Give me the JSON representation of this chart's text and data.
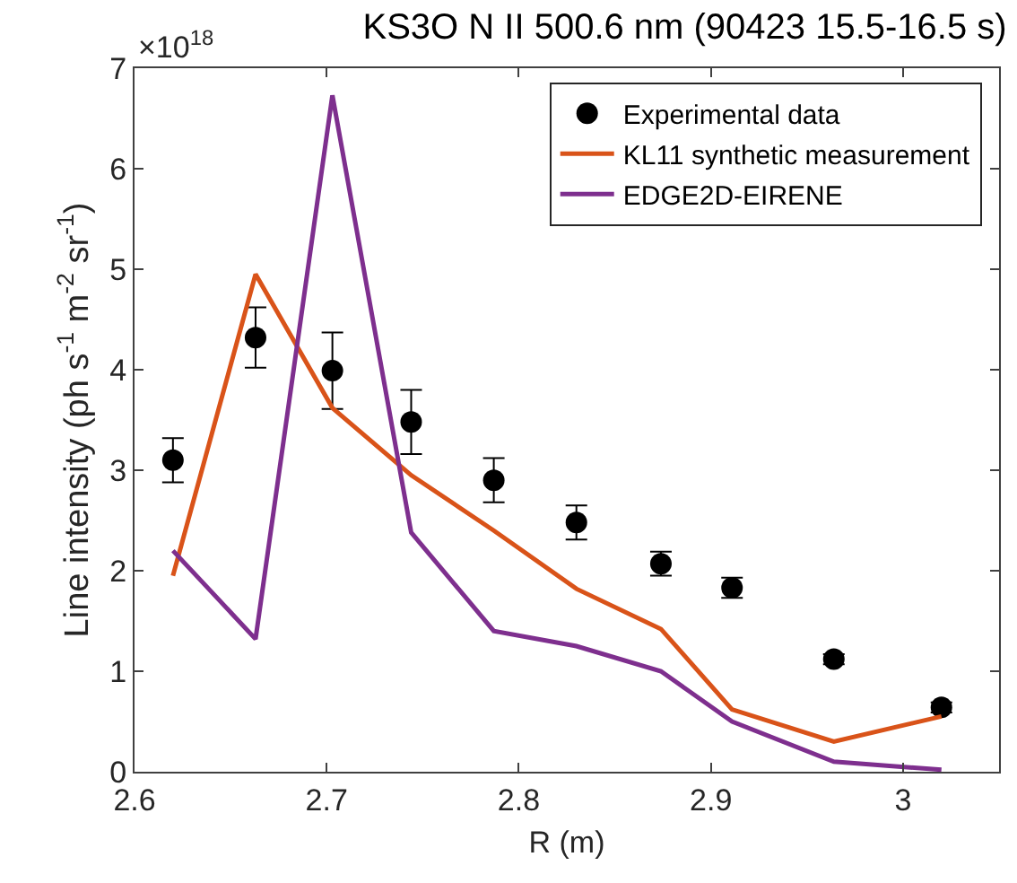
{
  "chart_data": {
    "type": "line",
    "title": "KS3O N II 500.6 nm (90423 15.5-16.5 s)",
    "xlabel": "R (m)",
    "ylabel": "Line intensity (ph s$^{-1}$ m$^{-2}$ sr$^{-1}$)",
    "annotations": [
      "×10$^{18}$"
    ],
    "x": [
      2.62,
      2.663,
      2.703,
      2.744,
      2.787,
      2.83,
      2.874,
      2.911,
      2.964,
      3.02
    ],
    "series": [
      {
        "name": "Experimental data",
        "type": "scatter",
        "color": "#000000",
        "marker": "circle",
        "values": [
          3.1,
          4.32,
          3.99,
          3.48,
          2.9,
          2.48,
          2.07,
          1.83,
          1.12,
          0.64
        ],
        "errors": [
          0.22,
          0.3,
          0.38,
          0.32,
          0.22,
          0.17,
          0.12,
          0.1,
          0.05,
          0.05
        ]
      },
      {
        "name": "KL11 synthetic measurement",
        "color": "#d95319",
        "values": [
          1.95,
          4.95,
          3.62,
          2.95,
          2.4,
          1.82,
          1.42,
          0.62,
          0.3,
          0.55
        ]
      },
      {
        "name": "EDGE2D-EIRENE",
        "color": "#7e2f8e",
        "values": [
          2.2,
          1.32,
          6.73,
          2.38,
          1.4,
          1.25,
          1.0,
          0.5,
          0.1,
          0.02
        ]
      }
    ],
    "xlim": [
      2.6,
      3.05
    ],
    "xticks": [
      2.6,
      2.7,
      2.8,
      2.9,
      3
    ],
    "ylim": [
      0,
      7
    ],
    "yticks": [
      0,
      1,
      2,
      3,
      4,
      5,
      6,
      7
    ],
    "legend": "top right",
    "line_style": "solid"
  }
}
